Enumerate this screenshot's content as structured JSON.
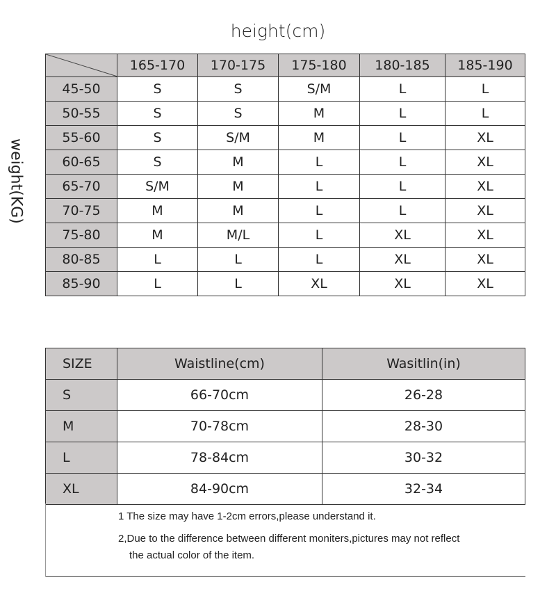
{
  "height_label": "height(cm)",
  "weight_label": "weight(KG)",
  "size_by_height_weight": {
    "columns": [
      "165-170",
      "170-175",
      "175-180",
      "180-185",
      "185-190"
    ],
    "rows": [
      {
        "weight": "45-50",
        "sizes": [
          "S",
          "S",
          "S/M",
          "L",
          "L"
        ]
      },
      {
        "weight": "50-55",
        "sizes": [
          "S",
          "S",
          "M",
          "L",
          "L"
        ]
      },
      {
        "weight": "55-60",
        "sizes": [
          "S",
          "S/M",
          "M",
          "L",
          "XL"
        ]
      },
      {
        "weight": "60-65",
        "sizes": [
          "S",
          "M",
          "L",
          "L",
          "XL"
        ]
      },
      {
        "weight": "65-70",
        "sizes": [
          "S/M",
          "M",
          "L",
          "L",
          "XL"
        ]
      },
      {
        "weight": "70-75",
        "sizes": [
          "M",
          "M",
          "L",
          "L",
          "XL"
        ]
      },
      {
        "weight": "75-80",
        "sizes": [
          "M",
          "M/L",
          "L",
          "XL",
          "XL"
        ]
      },
      {
        "weight": "80-85",
        "sizes": [
          "L",
          "L",
          "L",
          "XL",
          "XL"
        ]
      },
      {
        "weight": "85-90",
        "sizes": [
          "L",
          "L",
          "XL",
          "XL",
          "XL"
        ]
      }
    ]
  },
  "waist_table": {
    "headers": [
      "SIZE",
      "Waistline(cm)",
      "Wasitlin(in)"
    ],
    "rows": [
      [
        "S",
        "66-70cm",
        "26-28"
      ],
      [
        "M",
        "70-78cm",
        "28-30"
      ],
      [
        "L",
        "78-84cm",
        "30-32"
      ],
      [
        "XL",
        "84-90cm",
        "32-34"
      ]
    ]
  },
  "notes": [
    "1 The size may have 1-2cm errors,please understand it.",
    "2,Due to the difference between different moniters,pictures may not reflect",
    "the actual color of the item."
  ],
  "colors": {
    "header_gray": "#ccc9c9",
    "border": "#333333"
  }
}
